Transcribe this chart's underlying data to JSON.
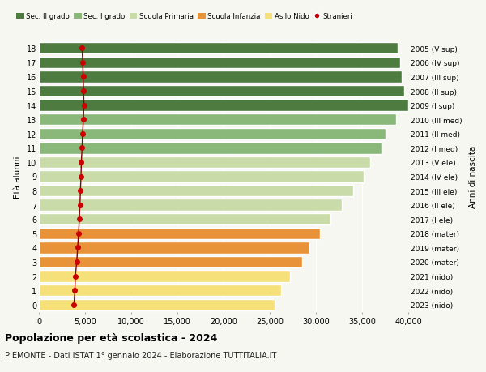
{
  "ages": [
    0,
    1,
    2,
    3,
    4,
    5,
    6,
    7,
    8,
    9,
    10,
    11,
    12,
    13,
    14,
    15,
    16,
    17,
    18
  ],
  "years": [
    "2023 (nido)",
    "2022 (nido)",
    "2021 (nido)",
    "2020 (mater)",
    "2019 (mater)",
    "2018 (mater)",
    "2017 (I ele)",
    "2016 (II ele)",
    "2015 (III ele)",
    "2014 (IV ele)",
    "2013 (V ele)",
    "2012 (I med)",
    "2011 (II med)",
    "2010 (III med)",
    "2009 (I sup)",
    "2008 (II sup)",
    "2007 (III sup)",
    "2006 (IV sup)",
    "2005 (V sup)"
  ],
  "values": [
    25500,
    26200,
    27200,
    28500,
    29300,
    30400,
    31600,
    32800,
    34000,
    35200,
    35900,
    37100,
    37500,
    38700,
    40000,
    39600,
    39300,
    39100,
    38900
  ],
  "stranieri": [
    3800,
    3900,
    3950,
    4100,
    4200,
    4300,
    4380,
    4450,
    4500,
    4560,
    4600,
    4680,
    4730,
    4820,
    4880,
    4840,
    4790,
    4750,
    4680
  ],
  "bar_colors": [
    "#f5e07a",
    "#f5e07a",
    "#f5e07a",
    "#e8923a",
    "#e8923a",
    "#e8923a",
    "#c8dba8",
    "#c8dba8",
    "#c8dba8",
    "#c8dba8",
    "#c8dba8",
    "#8ab87a",
    "#8ab87a",
    "#8ab87a",
    "#4e7c40",
    "#4e7c40",
    "#4e7c40",
    "#4e7c40",
    "#4e7c40"
  ],
  "legend_labels": [
    "Sec. II grado",
    "Sec. I grado",
    "Scuola Primaria",
    "Scuola Infanzia",
    "Asilo Nido",
    "Stranieri"
  ],
  "legend_colors": [
    "#4e7c40",
    "#8ab87a",
    "#c8dba8",
    "#e8923a",
    "#f5e07a",
    "#cc0000"
  ],
  "ylabel_left": "Età alunni",
  "ylabel_right": "Anni di nascita",
  "title": "Popolazione per età scolastica - 2024",
  "subtitle": "PIEMONTE - Dati ISTAT 1° gennaio 2024 - Elaborazione TUTTITALIA.IT",
  "xlim": [
    0,
    40000
  ],
  "bg_color": "#f7f7f2",
  "stranieri_color": "#cc0000",
  "stranieri_line_color": "#8b0000",
  "xticks": [
    0,
    5000,
    10000,
    15000,
    20000,
    25000,
    30000,
    35000,
    40000
  ],
  "xtick_labels": [
    "0",
    "5,000",
    "10,000",
    "15,000",
    "20,000",
    "25,000",
    "30,000",
    "35,000",
    "40,000"
  ]
}
